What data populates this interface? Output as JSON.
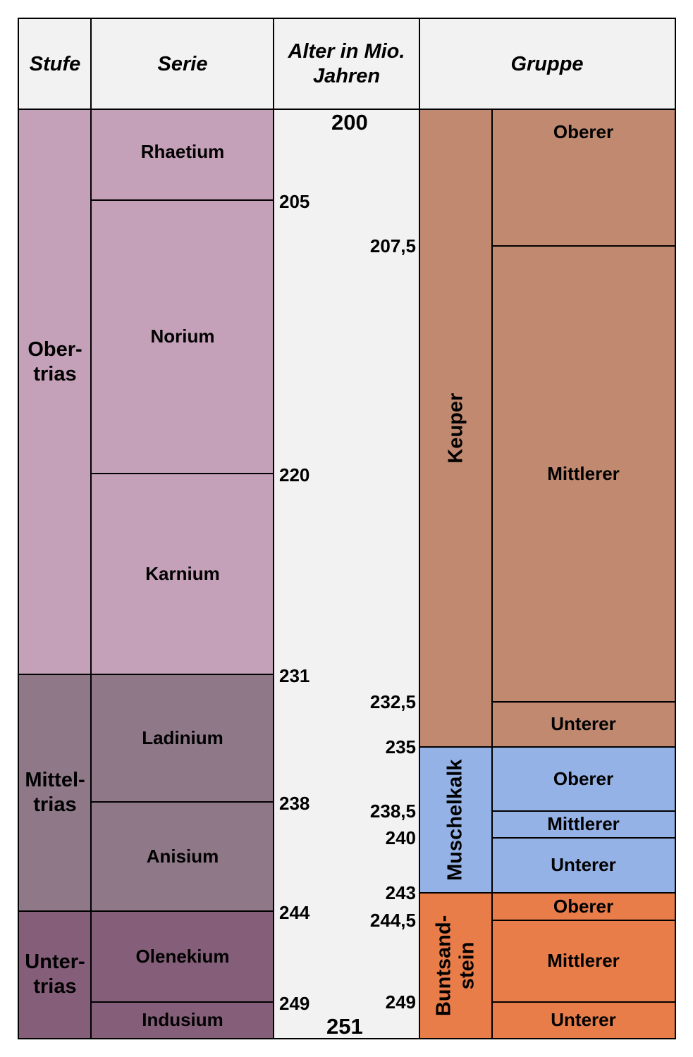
{
  "headers": {
    "stufe": "Stufe",
    "serie": "Serie",
    "alter": "Alter in Mio. Jahren",
    "gruppe": "Gruppe"
  },
  "colors": {
    "obertrias": "#c4a1b8",
    "mitteltrias": "#8f7888",
    "untertrias": "#855f7a",
    "keuper": "#c08970",
    "muschelkalk": "#95b2e6",
    "buntsandstein": "#e97d4a",
    "header_background": "#f2f2f2",
    "age_column_background": "#f2f2f2"
  },
  "stufen": [
    {
      "label": "Ober-\ntrias",
      "from": 200,
      "to": 231,
      "color": "#c4a1b8"
    },
    {
      "label": "Mittel-\ntrias",
      "from": 231,
      "to": 244,
      "color": "#8f7888"
    },
    {
      "label": "Unter-\ntrias",
      "from": 244,
      "to": 251,
      "color": "#855f7a"
    }
  ],
  "serien": [
    {
      "label": "Rhaetium",
      "from": 200,
      "to": 205,
      "color": "#c4a1b8"
    },
    {
      "label": "Norium",
      "from": 205,
      "to": 220,
      "color": "#c4a1b8"
    },
    {
      "label": "Karnium",
      "from": 220,
      "to": 231,
      "color": "#c4a1b8"
    },
    {
      "label": "Ladinium",
      "from": 231,
      "to": 238,
      "color": "#8f7888"
    },
    {
      "label": "Anisium",
      "from": 238,
      "to": 244,
      "color": "#8f7888"
    },
    {
      "label": "Olenekium",
      "from": 244,
      "to": 249,
      "color": "#855f7a"
    },
    {
      "label": "Indusium",
      "from": 249,
      "to": 251,
      "color": "#855f7a"
    }
  ],
  "alter_serie": [
    "205",
    "220",
    "231",
    "238",
    "244",
    "249"
  ],
  "alter_gruppe": [
    "207,5",
    "232,5",
    "235",
    "238,5",
    "240",
    "243",
    "244,5",
    "249"
  ],
  "alter_limits": {
    "top": "200",
    "bottom": "251"
  },
  "gruppen": [
    {
      "label": "Keuper",
      "from": 200,
      "to": 235,
      "color": "#c08970"
    },
    {
      "label": "Muschelkalk",
      "from": 235,
      "to": 243,
      "color": "#95b2e6"
    },
    {
      "label": "Buntsand-\nstein",
      "from": 243,
      "to": 251,
      "color": "#e97d4a"
    }
  ],
  "untergruppen": [
    {
      "label": "Oberer",
      "from": 200,
      "to": 207.5,
      "color": "#c08970"
    },
    {
      "label": "Mittlerer",
      "from": 207.5,
      "to": 232.5,
      "color": "#c08970"
    },
    {
      "label": "Unterer",
      "from": 232.5,
      "to": 235,
      "color": "#c08970"
    },
    {
      "label": "Oberer",
      "from": 235,
      "to": 238.5,
      "color": "#95b2e6"
    },
    {
      "label": "Mittlerer",
      "from": 238.5,
      "to": 240,
      "color": "#95b2e6"
    },
    {
      "label": "Unterer",
      "from": 240,
      "to": 243,
      "color": "#95b2e6"
    },
    {
      "label": "Oberer",
      "from": 243,
      "to": 244.5,
      "color": "#e97d4a"
    },
    {
      "label": "Mittlerer",
      "from": 244.5,
      "to": 249,
      "color": "#e97d4a"
    },
    {
      "label": "Unterer",
      "from": 249,
      "to": 251,
      "color": "#e97d4a"
    }
  ]
}
